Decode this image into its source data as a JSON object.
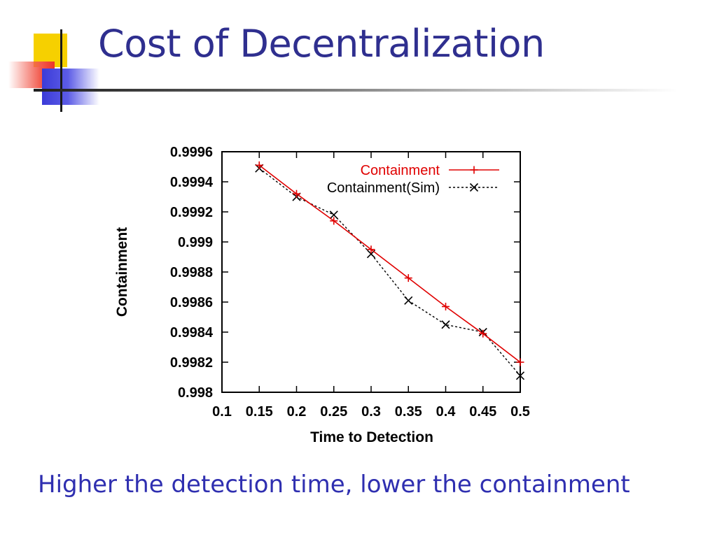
{
  "slide": {
    "title": "Cost of Decentralization",
    "subtitle": "Higher the detection time, lower the containment"
  },
  "colors": {
    "title": "#2f2f8f",
    "subtitle": "#2f2fb0",
    "series_containment": "#e00000",
    "series_sim": "#000000",
    "deco_yellow": "#f6d000",
    "deco_red": "#ec3427",
    "deco_blue": "#3b3bd8"
  },
  "chart_data": {
    "type": "line",
    "xlabel": "Time to Detection",
    "ylabel": "Containment",
    "xlim": [
      0.1,
      0.5
    ],
    "ylim": [
      0.998,
      0.9996
    ],
    "x_ticks": [
      "0.1",
      "0.15",
      "0.2",
      "0.25",
      "0.3",
      "0.35",
      "0.4",
      "0.45",
      "0.5"
    ],
    "y_ticks": [
      "0.998",
      "0.9982",
      "0.9984",
      "0.9986",
      "0.9988",
      "0.999",
      "0.9992",
      "0.9994",
      "0.9996"
    ],
    "grid": false,
    "legend_position": "top-right",
    "series": [
      {
        "name": "Containment",
        "color": "#e00000",
        "marker": "+",
        "line": "solid",
        "x": [
          0.15,
          0.2,
          0.25,
          0.3,
          0.35,
          0.4,
          0.45,
          0.5
        ],
        "y": [
          0.99951,
          0.99932,
          0.99914,
          0.99895,
          0.99876,
          0.99857,
          0.99839,
          0.9982
        ]
      },
      {
        "name": "Containment(Sim)",
        "color": "#000000",
        "marker": "x",
        "line": "dashed",
        "x": [
          0.15,
          0.2,
          0.25,
          0.3,
          0.35,
          0.4,
          0.45,
          0.5
        ],
        "y": [
          0.99949,
          0.9993,
          0.99918,
          0.99892,
          0.99861,
          0.99845,
          0.9984,
          0.99811
        ]
      }
    ]
  }
}
